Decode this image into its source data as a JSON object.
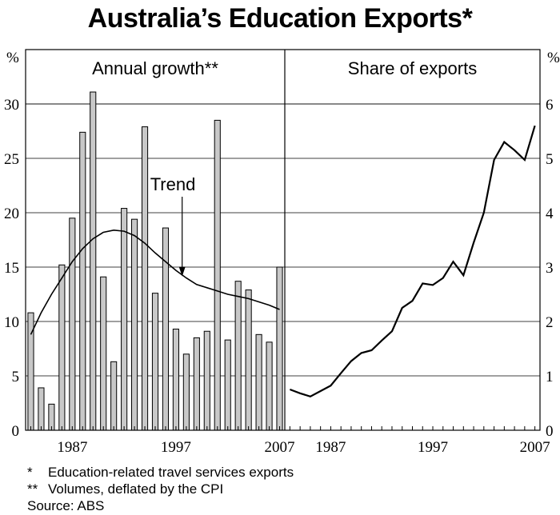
{
  "title": "Australia’s Education Exports*",
  "notes": {
    "n1_mark": "*",
    "n1_text": "Education-related travel services exports",
    "n2_mark": "**",
    "n2_text": "Volumes, deflated by the CPI",
    "source": "Source: ABS"
  },
  "colors": {
    "bar_fill": "#c8c8c8",
    "line": "#000000",
    "grid": "#000000"
  },
  "chart_data": [
    {
      "type": "bar",
      "title": "Annual growth**",
      "unit": "%",
      "ylim": [
        0,
        35
      ],
      "yticks": [
        "0",
        "5",
        "10",
        "15",
        "20",
        "25",
        "30"
      ],
      "xticks": [
        "1987",
        "1997",
        "2007"
      ],
      "categories": [
        1983,
        1984,
        1985,
        1986,
        1987,
        1988,
        1989,
        1990,
        1991,
        1992,
        1993,
        1994,
        1995,
        1996,
        1997,
        1998,
        1999,
        2000,
        2001,
        2002,
        2003,
        2004,
        2005,
        2006,
        2007
      ],
      "values": [
        10.8,
        3.9,
        2.4,
        15.2,
        19.5,
        27.4,
        31.1,
        14.1,
        6.3,
        20.4,
        19.4,
        27.9,
        12.6,
        18.6,
        9.3,
        7.0,
        8.5,
        9.1,
        28.5,
        8.3,
        13.7,
        12.9,
        8.8,
        8.1,
        15.0
      ],
      "series": [
        {
          "name": "Trend",
          "annotation": "Trend",
          "x": [
            1983,
            1984,
            1985,
            1986,
            1987,
            1988,
            1989,
            1990,
            1991,
            1992,
            1993,
            1994,
            1995,
            1996,
            1997,
            1998,
            1999,
            2000,
            2001,
            2002,
            2003,
            2004,
            2005,
            2006,
            2007
          ],
          "y": [
            8.8,
            10.8,
            12.5,
            14.0,
            15.5,
            16.7,
            17.6,
            18.2,
            18.4,
            18.3,
            17.9,
            17.2,
            16.3,
            15.5,
            14.7,
            14.0,
            13.4,
            13.1,
            12.8,
            12.5,
            12.3,
            12.1,
            11.8,
            11.5,
            11.1
          ]
        }
      ],
      "grid": true
    },
    {
      "type": "line",
      "title": "Share of exports",
      "unit": "%",
      "ylim": [
        0,
        7
      ],
      "yticks": [
        "0",
        "1",
        "2",
        "3",
        "4",
        "5",
        "6"
      ],
      "xticks": [
        "1987",
        "1997",
        "2007"
      ],
      "series": [
        {
          "x": [
            1983,
            1984,
            1985,
            1986,
            1987,
            1988,
            1989,
            1990,
            1991,
            1992,
            1993,
            1994,
            1995,
            1996,
            1997,
            1998,
            1999,
            2000,
            2001,
            2002,
            2003,
            2004,
            2005,
            2006,
            2007
          ],
          "y": [
            0.75,
            0.68,
            0.62,
            0.72,
            0.82,
            1.05,
            1.27,
            1.42,
            1.47,
            1.65,
            1.82,
            2.25,
            2.38,
            2.7,
            2.67,
            2.8,
            3.1,
            2.85,
            3.45,
            4.0,
            4.97,
            5.3,
            5.15,
            4.97,
            5.6
          ]
        }
      ],
      "grid": true
    }
  ]
}
